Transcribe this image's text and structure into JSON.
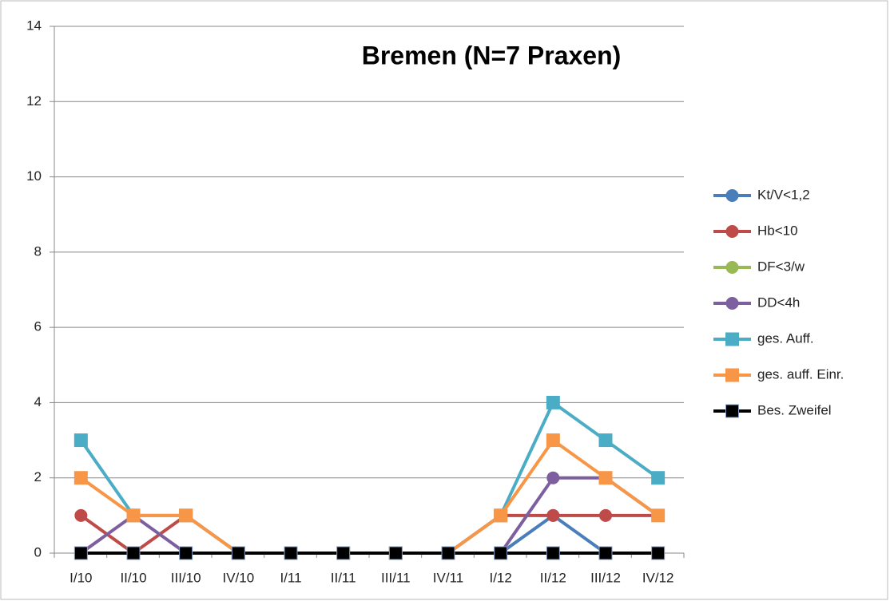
{
  "chart_data": {
    "type": "line",
    "title": "Bremen (N=7 Praxen)",
    "categories": [
      "I/10",
      "II/10",
      "III/10",
      "IV/10",
      "I/11",
      "II/11",
      "III/11",
      "IV/11",
      "I/12",
      "II/12",
      "III/12",
      "IV/12"
    ],
    "series": [
      {
        "name": "Kt/V<1,2",
        "color": "#4a7ebb",
        "marker": "circle",
        "values": [
          0,
          0,
          0,
          0,
          0,
          0,
          0,
          0,
          0,
          1,
          0,
          0
        ]
      },
      {
        "name": "Hb<10",
        "color": "#be4b48",
        "marker": "circle",
        "values": [
          1,
          0,
          1,
          0,
          0,
          0,
          0,
          0,
          1,
          1,
          1,
          1
        ]
      },
      {
        "name": "DF<3/w",
        "color": "#98b954",
        "marker": "circle",
        "values": [
          0,
          0,
          0,
          0,
          0,
          0,
          0,
          0,
          0,
          0,
          0,
          0
        ]
      },
      {
        "name": "DD<4h",
        "color": "#7d5fa0",
        "marker": "circle",
        "values": [
          0,
          1,
          0,
          0,
          0,
          0,
          0,
          0,
          0,
          2,
          2,
          1
        ]
      },
      {
        "name": "ges. Auff.",
        "color": "#4bacc6",
        "marker": "square",
        "values": [
          3,
          1,
          1,
          0,
          0,
          0,
          0,
          0,
          1,
          4,
          3,
          2
        ]
      },
      {
        "name": "ges. auff. Einr.",
        "color": "#f79646",
        "marker": "square",
        "values": [
          2,
          1,
          1,
          0,
          0,
          0,
          0,
          0,
          1,
          3,
          2,
          1
        ]
      },
      {
        "name": "Bes. Zweifel",
        "color": "#000000",
        "marker": "square",
        "values": [
          0,
          0,
          0,
          0,
          0,
          0,
          0,
          0,
          0,
          0,
          0,
          0
        ]
      }
    ],
    "ylim": [
      0,
      14
    ],
    "yticks": [
      0,
      2,
      4,
      6,
      8,
      10,
      12,
      14
    ],
    "grid": true,
    "legend": "right"
  }
}
